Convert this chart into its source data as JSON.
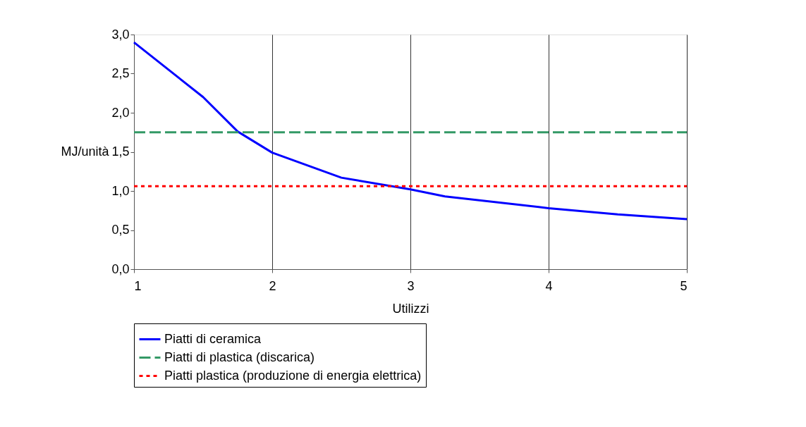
{
  "chart_data": {
    "type": "line",
    "xlabel": "Utilizzi",
    "ylabel": "MJ/unità",
    "xlim": [
      1,
      5
    ],
    "xticks": [
      1,
      2,
      3,
      4,
      5
    ],
    "ylim": [
      0,
      3
    ],
    "yticks": [
      {
        "value": 0,
        "label": "0,0"
      },
      {
        "value": 0.5,
        "label": "0,5"
      },
      {
        "value": 1,
        "label": "1,0"
      },
      {
        "value": 1.5,
        "label": "1,5"
      },
      {
        "value": 2,
        "label": "2,0"
      },
      {
        "value": 2.5,
        "label": "2,5"
      },
      {
        "value": 3,
        "label": "3,0"
      }
    ],
    "grid": "x",
    "legend": "bottom",
    "marker": "none",
    "series": [
      {
        "name": "Piatti di ceramica",
        "color": "#0000ff",
        "line_style": "solid",
        "x": [
          1,
          1.5,
          1.75,
          2,
          2.5,
          3,
          3.25,
          4,
          4.5,
          5
        ],
        "values": [
          2.9,
          2.2,
          1.76,
          1.49,
          1.17,
          1.02,
          0.93,
          0.78,
          0.7,
          0.64
        ]
      },
      {
        "name": "Piatti di plastica (discarica)",
        "color": "#339966",
        "line_style": "dashed",
        "x": [
          1,
          5
        ],
        "values": [
          1.75,
          1.75
        ]
      },
      {
        "name": "Piatti plastica (produzione di energia elettrica)",
        "color": "#ff0000",
        "line_style": "dotted",
        "x": [
          1,
          5
        ],
        "values": [
          1.06,
          1.06
        ]
      }
    ]
  }
}
